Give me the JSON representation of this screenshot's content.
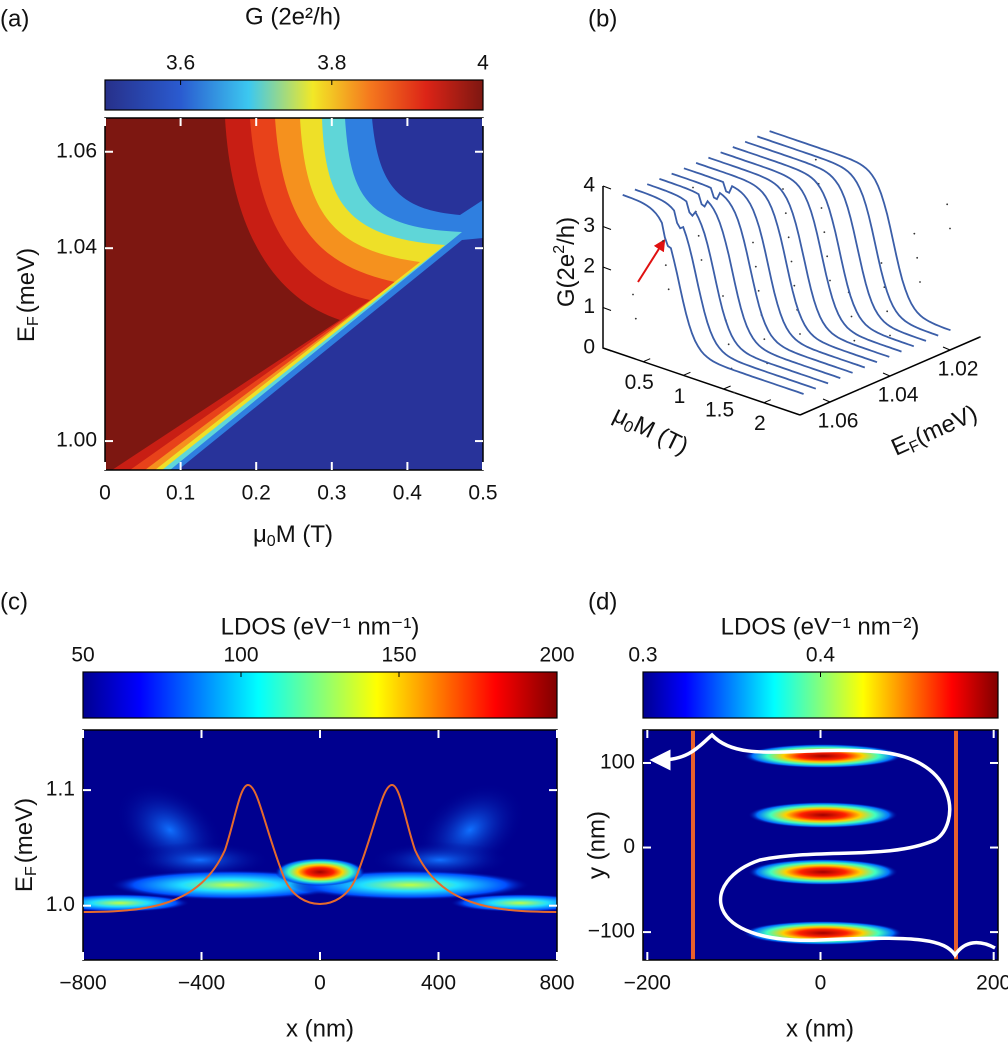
{
  "chart_data": [
    {
      "type": "heatmap",
      "panel_label": "(a)",
      "colorbar": {
        "title": "G (2e²/h)",
        "lim": [
          3.5,
          4
        ],
        "ticks": [
          3.6,
          3.8,
          4
        ]
      },
      "xlabel": [
        "μ",
        "0",
        "M (T)"
      ],
      "ylabel": [
        "E",
        "F",
        "(meV)"
      ],
      "xlim": [
        0,
        0.5
      ],
      "xticks": [
        0,
        0.1,
        0.2,
        0.3,
        0.4,
        0.5
      ],
      "ylim": [
        0.994,
        1.067
      ],
      "yticks": [
        {
          "value": 1.0,
          "label": "1.00"
        },
        1.04,
        1.06
      ]
    },
    {
      "type": "waterfall",
      "panel_label": "(b)",
      "zlabel": [
        "G(2e",
        "2",
        "/h)"
      ],
      "xlabel": [
        "μ",
        "0",
        "M (T)"
      ],
      "ylabel": [
        "E",
        "F",
        "(meV)"
      ],
      "zlim": [
        0,
        4
      ],
      "zticks": [
        0,
        1,
        2,
        3,
        4
      ],
      "xlim": [
        0,
        2.45
      ],
      "xticks": [
        0.5,
        1,
        1.5,
        2
      ],
      "ylim": [
        1.07,
        1.01
      ],
      "yticks": [
        1.02,
        1.04,
        1.06
      ]
    },
    {
      "type": "heatmap",
      "panel_label": "(c)",
      "colorbar": {
        "title": "LDOS (eV⁻¹ nm⁻¹)",
        "lim": [
          50,
          200
        ],
        "ticks": [
          50,
          100,
          150,
          200
        ]
      },
      "xlabel": [
        "x (nm)"
      ],
      "ylabel": [
        "E",
        "F",
        "(meV)"
      ],
      "xlim": [
        -800,
        800
      ],
      "xticks": [
        {
          "value": -800,
          "label": "−800"
        },
        {
          "value": -400,
          "label": "−400"
        },
        0,
        400,
        800
      ],
      "ylim": [
        0.953,
        1.152
      ],
      "yticks": [
        {
          "value": 1.0,
          "label": "1.0"
        },
        {
          "value": 1.1,
          "label": "1.1"
        }
      ]
    },
    {
      "type": "heatmap",
      "panel_label": "(d)",
      "colorbar": {
        "title": "LDOS (eV⁻¹ nm⁻²)",
        "lim": [
          0.3,
          0.5
        ],
        "ticks": [
          0.3,
          0.4
        ]
      },
      "xlabel": [
        "x (nm)"
      ],
      "ylabel": [
        "y (nm)"
      ],
      "xlim": [
        -205,
        205
      ],
      "xticks": [
        {
          "value": -200,
          "label": "−200"
        },
        0,
        200
      ],
      "ylim": [
        -133,
        139
      ],
      "yticks": [
        {
          "value": -100,
          "label": "−100"
        },
        0,
        100
      ]
    }
  ]
}
